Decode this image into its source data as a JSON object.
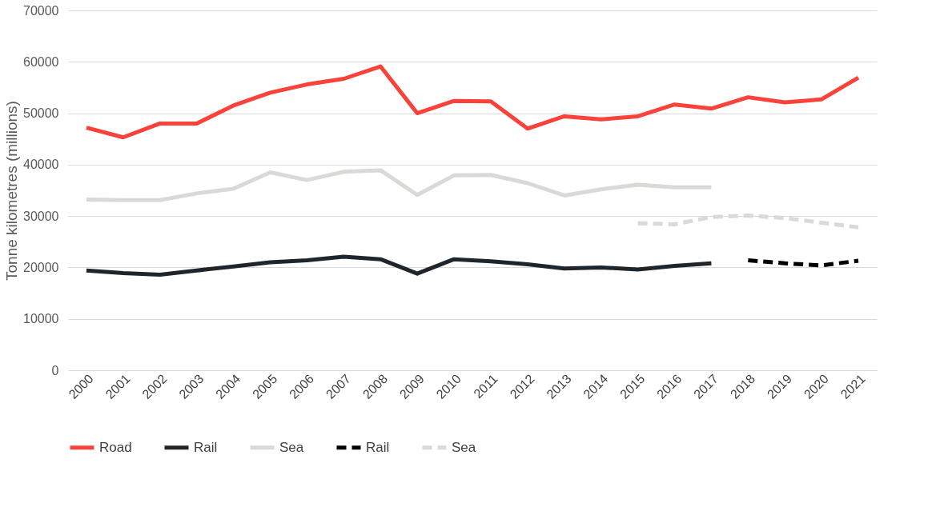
{
  "chart_data": {
    "type": "line",
    "ylabel": "Tonne kilometres (millions)",
    "categories": [
      "2000",
      "2001",
      "2002",
      "2003",
      "2004",
      "2005",
      "2006",
      "2007",
      "2008",
      "2009",
      "2010",
      "2011",
      "2012",
      "2013",
      "2014",
      "2015",
      "2016",
      "2017",
      "2018",
      "2019",
      "2020",
      "2021"
    ],
    "series": [
      {
        "name": "Road",
        "color": "#f9423a",
        "line_style": "solid",
        "values": [
          47200,
          45300,
          48000,
          48000,
          51500,
          54000,
          55600,
          56700,
          59100,
          50000,
          52400,
          52300,
          47000,
          49400,
          48800,
          49400,
          51700,
          50900,
          53100,
          52100,
          52700,
          56900
        ]
      },
      {
        "name": "Rail",
        "color": "#1e252b",
        "line_style": "solid",
        "values": [
          19400,
          18900,
          18600,
          19400,
          20200,
          21000,
          21400,
          22100,
          21600,
          18800,
          21600,
          21200,
          20600,
          19800,
          20000,
          19600,
          20300,
          20800,
          null,
          null,
          null,
          null
        ]
      },
      {
        "name": "Sea",
        "color": "#d9d9d6",
        "line_style": "solid",
        "values": [
          33200,
          33100,
          33100,
          34400,
          35300,
          38500,
          37000,
          38600,
          38900,
          34100,
          37900,
          38000,
          36400,
          34000,
          35200,
          36100,
          35600,
          35600,
          null,
          null,
          null,
          null
        ]
      },
      {
        "name": "Rail",
        "color": "#000000",
        "line_style": "dashed",
        "values": [
          null,
          null,
          null,
          null,
          null,
          null,
          null,
          null,
          null,
          null,
          null,
          null,
          null,
          null,
          null,
          null,
          null,
          null,
          21400,
          20800,
          20400,
          21300
        ]
      },
      {
        "name": "Sea",
        "color": "#d9d9d6",
        "line_style": "dashed",
        "values": [
          null,
          null,
          null,
          null,
          null,
          null,
          null,
          null,
          null,
          null,
          null,
          null,
          null,
          null,
          null,
          28600,
          28400,
          29800,
          30100,
          29600,
          28700,
          27800
        ]
      }
    ],
    "ylim": [
      0,
      70000
    ],
    "yticks": [
      0,
      10000,
      20000,
      30000,
      40000,
      50000,
      60000,
      70000
    ],
    "grid": "y",
    "legend": "bottom",
    "marker": "none"
  }
}
